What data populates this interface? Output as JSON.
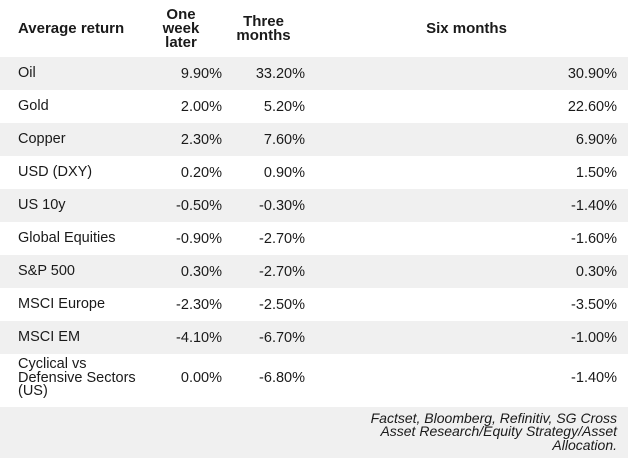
{
  "header": {
    "average_return": "Average return",
    "one_week_later": "One week later",
    "three_months": "Three months",
    "six_months": "Six months"
  },
  "rows": [
    {
      "label": "Oil",
      "one_week": "9.90%",
      "three_months": "33.20%",
      "six_months": "30.90%"
    },
    {
      "label": "Gold",
      "one_week": "2.00%",
      "three_months": "5.20%",
      "six_months": "22.60%"
    },
    {
      "label": "Copper",
      "one_week": "2.30%",
      "three_months": "7.60%",
      "six_months": "6.90%"
    },
    {
      "label": "USD (DXY)",
      "one_week": "0.20%",
      "three_months": "0.90%",
      "six_months": "1.50%"
    },
    {
      "label": "US 10y",
      "one_week": "-0.50%",
      "three_months": "-0.30%",
      "six_months": "-1.40%"
    },
    {
      "label": "Global Equities",
      "one_week": "-0.90%",
      "three_months": "-2.70%",
      "six_months": "-1.60%"
    },
    {
      "label": "S&P 500",
      "one_week": "0.30%",
      "three_months": "-2.70%",
      "six_months": "0.30%"
    },
    {
      "label": "MSCI Europe",
      "one_week": "-2.30%",
      "three_months": "-2.50%",
      "six_months": "-3.50%"
    },
    {
      "label": "MSCI EM",
      "one_week": "-4.10%",
      "three_months": "-6.70%",
      "six_months": "-1.00%"
    },
    {
      "label": "Cyclical vs Defensive Sectors (US)",
      "one_week": "0.00%",
      "three_months": "-6.80%",
      "six_months": "-1.40%"
    }
  ],
  "footer": {
    "source": "Factset, Bloomberg, Refinitiv, SG Cross Asset Research/Equity Strategy/Asset Allocation."
  },
  "colors": {
    "row_alt_background": "#f0f0f0",
    "text": "#1a1a1a",
    "background": "#ffffff"
  },
  "chart_data": {
    "type": "table",
    "title": "Average return",
    "categories": [
      "Oil",
      "Gold",
      "Copper",
      "USD (DXY)",
      "US 10y",
      "Global Equities",
      "S&P 500",
      "MSCI Europe",
      "MSCI EM",
      "Cyclical vs Defensive Sectors (US)"
    ],
    "series": [
      {
        "name": "One week later",
        "values": [
          9.9,
          2.0,
          2.3,
          0.2,
          -0.5,
          -0.9,
          0.3,
          -2.3,
          -4.1,
          0.0
        ]
      },
      {
        "name": "Three months",
        "values": [
          33.2,
          5.2,
          7.6,
          0.9,
          -0.3,
          -2.7,
          -2.7,
          -2.5,
          -6.7,
          -6.8
        ]
      },
      {
        "name": "Six months",
        "values": [
          30.9,
          22.6,
          6.9,
          1.5,
          -1.4,
          -1.6,
          0.3,
          -3.5,
          -1.0,
          -1.4
        ]
      }
    ],
    "unit": "%",
    "source_note": "Factset, Bloomberg, Refinitiv, SG Cross Asset Research/Equity Strategy/Asset Allocation."
  }
}
